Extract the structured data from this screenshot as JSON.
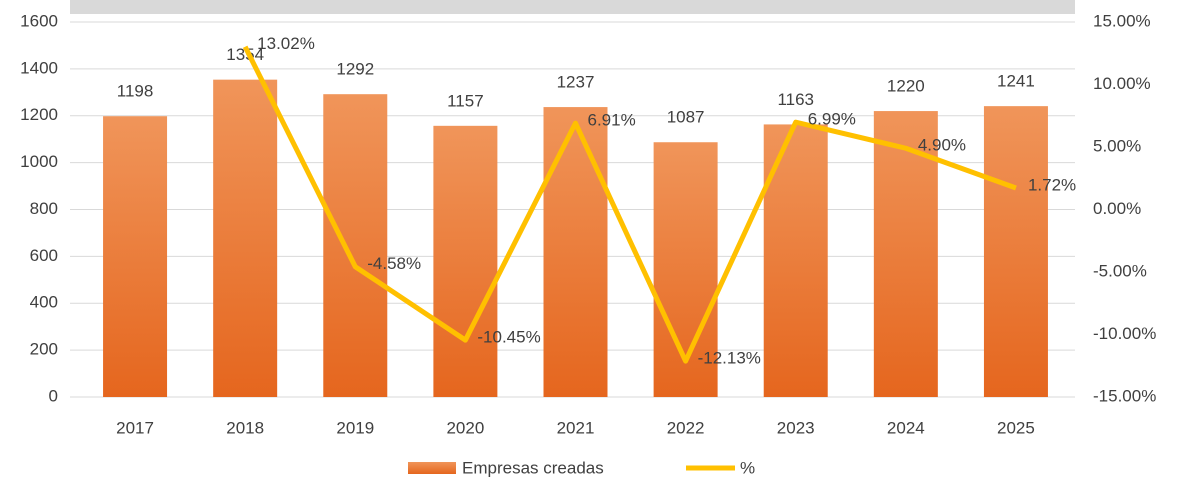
{
  "chart_data": {
    "type": "bar",
    "categories": [
      "2017",
      "2018",
      "2019",
      "2020",
      "2021",
      "2022",
      "2023",
      "2024",
      "2025"
    ],
    "series": [
      {
        "name": "Empresas creadas",
        "type": "bar",
        "color": "#ed7d31",
        "values": [
          1198,
          1354,
          1292,
          1157,
          1237,
          1087,
          1163,
          1220,
          1241
        ]
      },
      {
        "name": "%",
        "type": "line",
        "axis": "y2",
        "color": "#ffc000",
        "values": [
          null,
          13.02,
          -4.58,
          -10.45,
          6.91,
          -12.13,
          6.99,
          4.9,
          1.72
        ],
        "value_labels": [
          null,
          "13.02%",
          "-4.58%",
          "-10.45%",
          "6.91%",
          "-12.13%",
          "6.99%",
          "4.90%",
          "1.72%"
        ]
      }
    ],
    "ylim": [
      0,
      1600
    ],
    "yticks": [
      0,
      200,
      400,
      600,
      800,
      1000,
      1200,
      1400,
      1600
    ],
    "y2lim": [
      -15,
      15
    ],
    "y2ticks": [
      {
        "value": -15,
        "label": "-15.00%"
      },
      {
        "value": -10,
        "label": "-10.00%"
      },
      {
        "value": -5,
        "label": "-5.00%"
      },
      {
        "value": 0,
        "label": "0.00%"
      },
      {
        "value": 5,
        "label": "5.00%"
      },
      {
        "value": 10,
        "label": "10.00%"
      },
      {
        "value": 15,
        "label": "15.00%"
      }
    ],
    "grid": true,
    "legend": "bottom"
  }
}
